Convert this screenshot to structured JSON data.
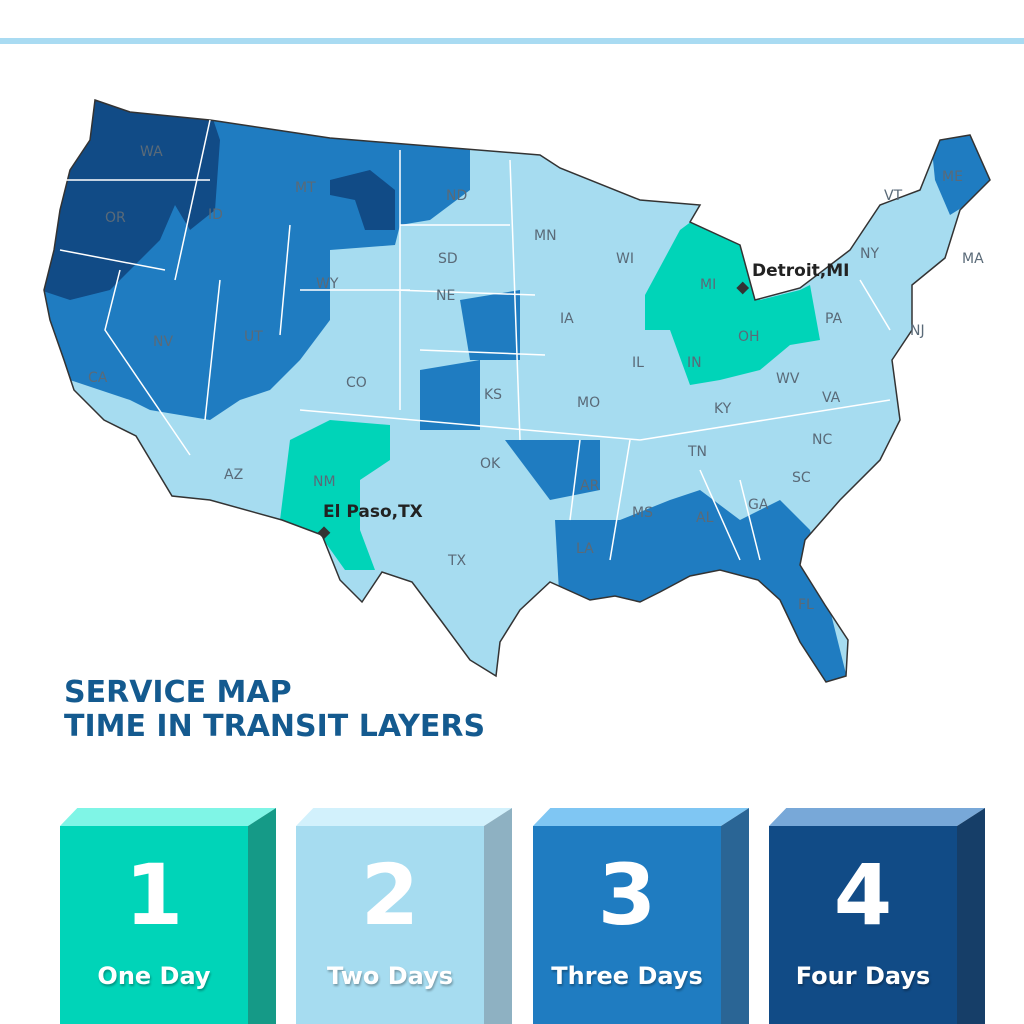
{
  "title": {
    "line1": "SERVICE MAP",
    "line2": "TIME IN TRANSIT LAYERS"
  },
  "colors": {
    "one_day": "#00d4b8",
    "two_days": "#a6dcf0",
    "three_days": "#1f7cc1",
    "four_days": "#114b86"
  },
  "states": [
    "WA",
    "OR",
    "CA",
    "ID",
    "NV",
    "MT",
    "WY",
    "UT",
    "AZ",
    "CO",
    "NM",
    "ND",
    "SD",
    "NE",
    "KS",
    "OK",
    "TX",
    "MN",
    "IA",
    "MO",
    "AR",
    "LA",
    "WI",
    "IL",
    "MI",
    "IN",
    "OH",
    "KY",
    "TN",
    "MS",
    "AL",
    "GA",
    "FL",
    "SC",
    "NC",
    "VA",
    "WV",
    "PA",
    "NY",
    "VT",
    "ME",
    "MA",
    "NJ"
  ],
  "cities": [
    {
      "name": "Detroit,MI"
    },
    {
      "name": "El Paso,TX"
    }
  ],
  "legend": [
    {
      "number": "1",
      "label": "One Day"
    },
    {
      "number": "2",
      "label": "Two Days"
    },
    {
      "number": "3",
      "label": "Three Days"
    },
    {
      "number": "4",
      "label": "Four Days"
    }
  ]
}
